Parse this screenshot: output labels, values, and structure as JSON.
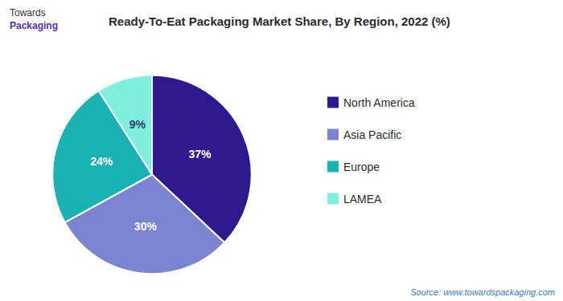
{
  "chart_data": {
    "type": "pie",
    "title": "Ready-To-Eat Packaging Market Share, By Region, 2022 (%)",
    "categories": [
      "North America",
      "Asia Pacific",
      "Europe",
      "LAMEA"
    ],
    "values": [
      37,
      30,
      24,
      9
    ],
    "value_labels": [
      "37%",
      "30%",
      "24%",
      "9%"
    ],
    "colors": [
      "#2e1a8e",
      "#7b84d1",
      "#1ab3b3",
      "#7eeedd"
    ],
    "data_labels": true,
    "legend": "right",
    "annotations": [
      "Towards",
      "Packaging",
      "Source: www.towardspackaging.com"
    ]
  }
}
